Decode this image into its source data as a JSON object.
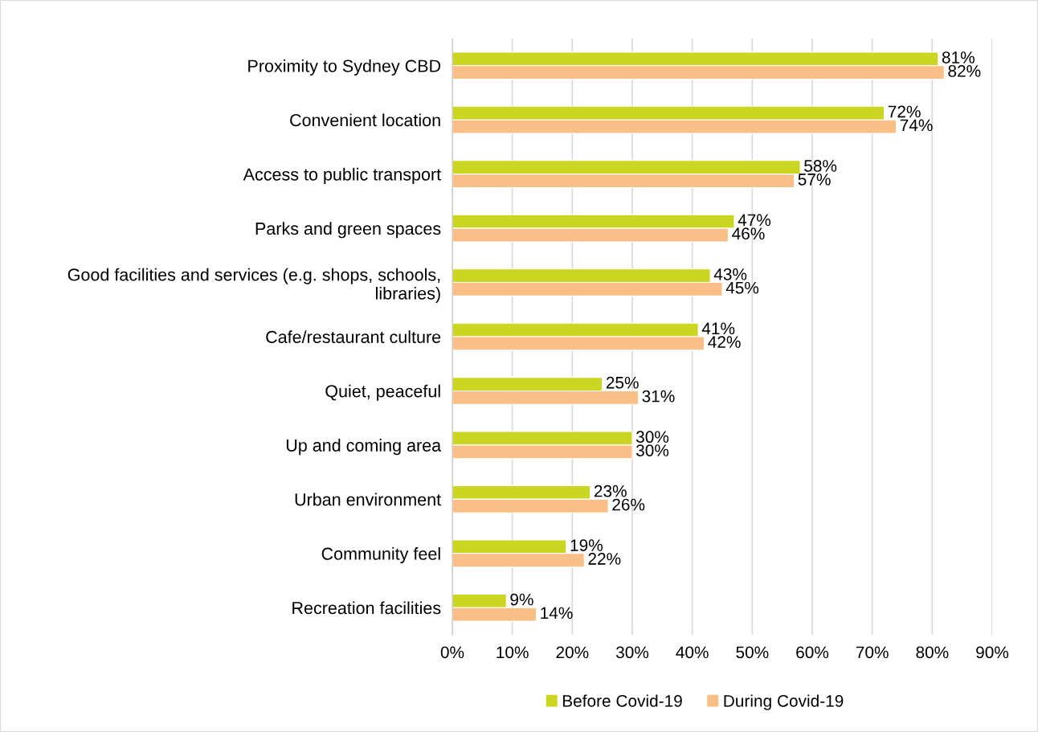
{
  "chart_data": {
    "type": "bar",
    "orientation": "horizontal",
    "categories": [
      "Proximity to Sydney CBD",
      "Convenient location",
      "Access to public transport",
      "Parks and green spaces",
      "Good facilities and services (e.g. shops, schools,\nlibraries)",
      "Cafe/restaurant culture",
      "Quiet, peaceful",
      "Up and coming area",
      "Urban environment",
      "Community feel",
      "Recreation facilities"
    ],
    "series": [
      {
        "name": "Before Covid-19",
        "color": "#cad621",
        "values": [
          81,
          72,
          58,
          47,
          43,
          41,
          25,
          30,
          23,
          19,
          9
        ],
        "value_labels": [
          "81%",
          "72%",
          "58%",
          "47%",
          "43%",
          "41%",
          "25%",
          "30%",
          "23%",
          "19%",
          "9%"
        ]
      },
      {
        "name": "During Covid-19",
        "color": "#f9bf87",
        "values": [
          82,
          74,
          57,
          46,
          45,
          42,
          31,
          30,
          26,
          22,
          14
        ],
        "value_labels": [
          "82%",
          "74%",
          "57%",
          "46%",
          "45%",
          "42%",
          "31%",
          "30%",
          "26%",
          "22%",
          "14%"
        ]
      }
    ],
    "xlim": [
      0,
      90
    ],
    "xticks": [
      {
        "value": 0,
        "label": "0%"
      },
      {
        "value": 10,
        "label": "10%"
      },
      {
        "value": 20,
        "label": "20%"
      },
      {
        "value": 30,
        "label": "30%"
      },
      {
        "value": 40,
        "label": "40%"
      },
      {
        "value": 50,
        "label": "50%"
      },
      {
        "value": 60,
        "label": "60%"
      },
      {
        "value": 70,
        "label": "70%"
      },
      {
        "value": 80,
        "label": "80%"
      },
      {
        "value": 90,
        "label": "90%"
      }
    ],
    "grid": "x",
    "legend": "bottom"
  }
}
